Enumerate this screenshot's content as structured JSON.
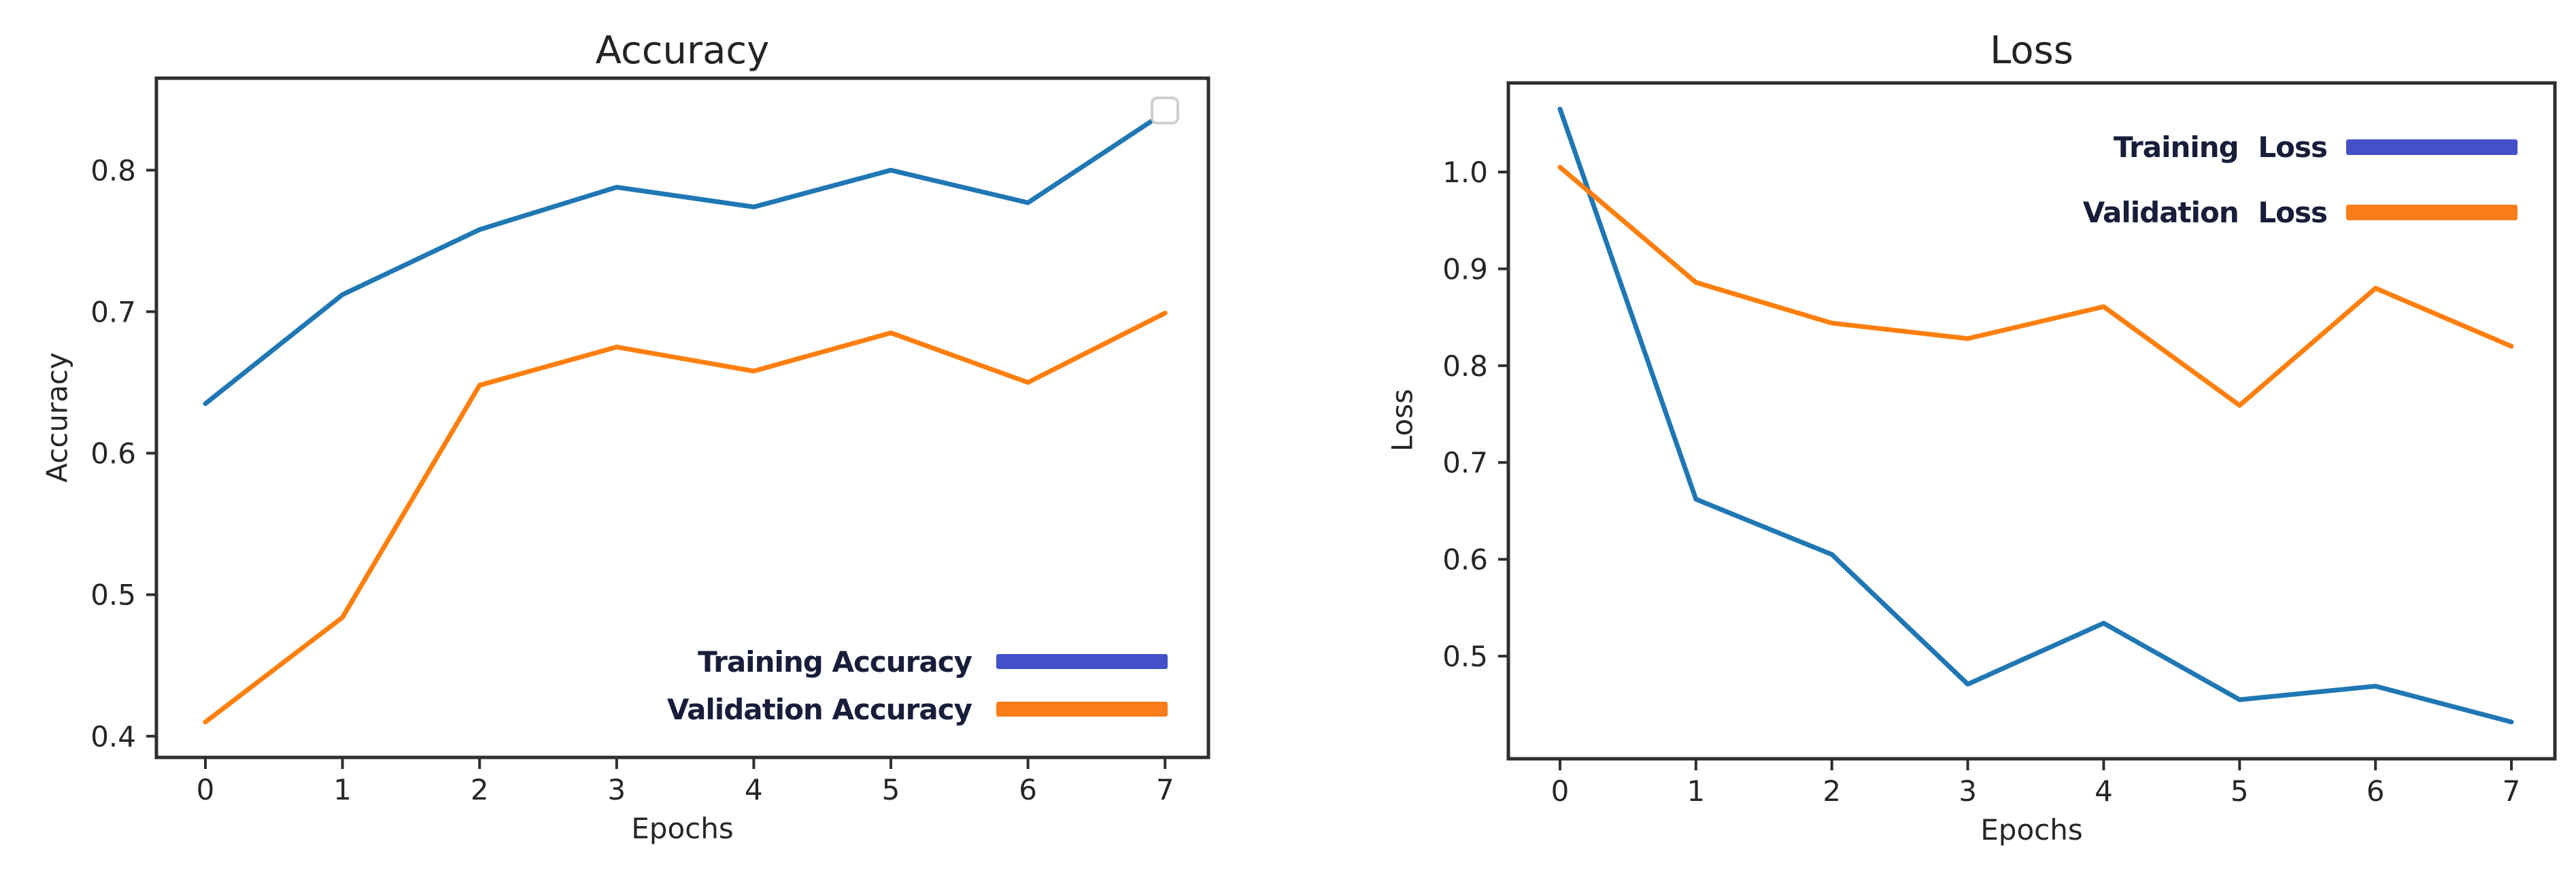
{
  "figure": {
    "background": "#ffffff",
    "colors": {
      "training_line": "#1f77b4",
      "validation_line": "#ff7f0e",
      "legend_training_swatch": "#4450c8",
      "legend_validation_swatch": "#f97e1b",
      "legend_text": "#181d3a",
      "axis_text": "#262626",
      "spine": "#2f2f2f"
    }
  },
  "chart_data": [
    {
      "type": "line",
      "title": "Accuracy",
      "xlabel": "Epochs",
      "ylabel": "Accuracy",
      "x": [
        0,
        1,
        2,
        3,
        4,
        5,
        6,
        7
      ],
      "xticks": [
        0,
        1,
        2,
        3,
        4,
        5,
        6,
        7
      ],
      "xtick_labels": [
        "0",
        "1",
        "2",
        "3",
        "4",
        "5",
        "6",
        "7"
      ],
      "yticks": [
        0.4,
        0.5,
        0.6,
        0.7,
        0.8
      ],
      "ytick_labels": [
        "0.4",
        "0.5",
        "0.6",
        "0.7",
        "0.8"
      ],
      "xlim": [
        -0.35,
        7.35
      ],
      "ylim": [
        0.385,
        0.865
      ],
      "grid": false,
      "legend": {
        "position": "lower-right-inside"
      },
      "empty_legend_box_top_right": true,
      "series": [
        {
          "name": "Training Accuracy",
          "color": "#1f77b4",
          "legend_swatch_color": "#4450c8",
          "values": [
            0.635,
            0.712,
            0.758,
            0.788,
            0.774,
            0.8,
            0.777,
            0.841
          ]
        },
        {
          "name": "Validation Accuracy",
          "color": "#ff7f0e",
          "legend_swatch_color": "#f97e1b",
          "values": [
            0.41,
            0.484,
            0.648,
            0.675,
            0.658,
            0.685,
            0.65,
            0.699
          ]
        }
      ]
    },
    {
      "type": "line",
      "title": "Loss",
      "xlabel": "Epochs",
      "ylabel": "Loss",
      "x": [
        0,
        1,
        2,
        3,
        4,
        5,
        6,
        7
      ],
      "xticks": [
        0,
        1,
        2,
        3,
        4,
        5,
        6,
        7
      ],
      "xtick_labels": [
        "0",
        "1",
        "2",
        "3",
        "4",
        "5",
        "6",
        "7"
      ],
      "yticks": [
        0.5,
        0.6,
        0.7,
        0.8,
        0.9,
        1.0
      ],
      "ytick_labels": [
        "0.5",
        "0.6",
        "0.7",
        "0.8",
        "0.9",
        "1.0"
      ],
      "xlim": [
        -0.35,
        7.35
      ],
      "ylim": [
        0.394,
        1.092
      ],
      "grid": false,
      "legend": {
        "position": "upper-right-inside"
      },
      "empty_legend_box_top_right": false,
      "series": [
        {
          "name": "Training Loss",
          "color": "#1f77b4",
          "legend_swatch_color": "#4450c8",
          "values": [
            1.065,
            0.662,
            0.605,
            0.471,
            0.534,
            0.455,
            0.469,
            0.432
          ]
        },
        {
          "name": "Validation Loss",
          "color": "#ff7f0e",
          "legend_swatch_color": "#f97e1b",
          "values": [
            1.005,
            0.886,
            0.844,
            0.828,
            0.861,
            0.759,
            0.88,
            0.82
          ]
        }
      ]
    }
  ]
}
